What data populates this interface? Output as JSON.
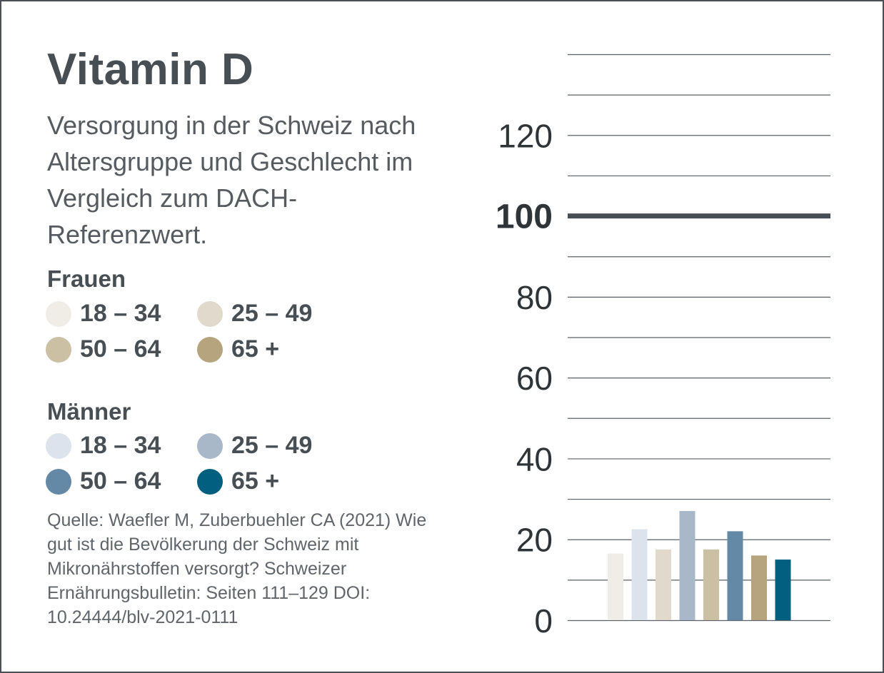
{
  "title": "Vitamin D",
  "subtitle": "Versorgung in der Schweiz nach Altersgruppe und Geschlecht im Vergleich zum DACH-Referenzwert.",
  "legend": {
    "women": {
      "title": "Frauen",
      "items": [
        {
          "label": "18 – 34",
          "color": "#f0ede6"
        },
        {
          "label": "25 – 49",
          "color": "#e0d9cc"
        },
        {
          "label": "50 – 64",
          "color": "#cbbfa4"
        },
        {
          "label": "65 +",
          "color": "#b5a47e"
        }
      ]
    },
    "men": {
      "title": "Männer",
      "items": [
        {
          "label": "18 – 34",
          "color": "#dde3ec"
        },
        {
          "label": "25 – 49",
          "color": "#a8b8c8"
        },
        {
          "label": "50 – 64",
          "color": "#6389a6"
        },
        {
          "label": "65 +",
          "color": "#035f7f"
        }
      ]
    }
  },
  "source": "Quelle: Waefler M, Zuberbuehler CA (2021) Wie gut ist die Bevölkerung der Schweiz mit Mikronährstoffen versorgt? Schweizer Ernährungsbulletin: Seiten 111–129 DOI: 10.24444/blv-2021-0111",
  "chart_data": {
    "type": "bar",
    "categories": [
      "Frauen 18 – 34",
      "Männer 18 – 34",
      "Frauen 25 – 49",
      "Männer 25 – 49",
      "Frauen 50 – 64",
      "Männer 50 – 64",
      "Frauen 65 +",
      "Männer 65 +"
    ],
    "values": [
      16.5,
      22.5,
      17.5,
      27,
      17.5,
      22,
      16,
      15
    ],
    "colors": [
      "#f0ede6",
      "#dde3ec",
      "#e0d9cc",
      "#a8b8c8",
      "#cbbfa4",
      "#6389a6",
      "#b5a47e",
      "#035f7f"
    ],
    "ylim": [
      0,
      140
    ],
    "gridlines": [
      0,
      10,
      20,
      30,
      40,
      50,
      60,
      70,
      80,
      90,
      100,
      110,
      120,
      130,
      140
    ],
    "tick_labels": [
      "0",
      "20",
      "40",
      "60",
      "80",
      "100",
      "120"
    ],
    "reference_value": 100,
    "reference_label": "100",
    "title": "Vitamin D",
    "xlabel": "",
    "ylabel": ""
  }
}
